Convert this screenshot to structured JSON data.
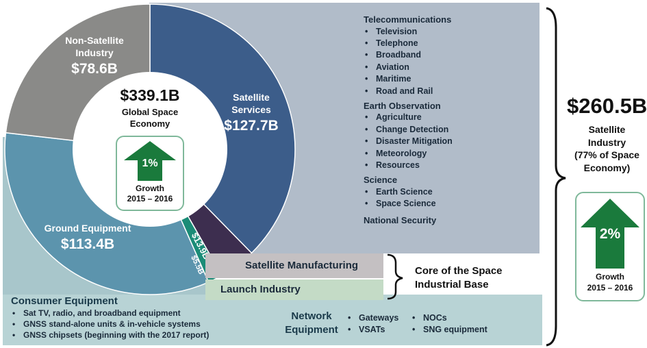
{
  "chart_data": {
    "type": "pie",
    "center_title": "$339.1B",
    "center_subtitle": "Global Space Economy",
    "center_growth": {
      "value": "1%",
      "label": "Growth",
      "period": "2015 – 2016"
    },
    "segments": [
      {
        "label": "Satellite Services",
        "value_text": "$127.7B",
        "value": 127.7,
        "color": "#3c5d8a"
      },
      {
        "label": "",
        "value_text": "$13.9B",
        "value": 13.9,
        "color": "#3d2e4f"
      },
      {
        "label": "",
        "value_text": "$5.5B",
        "value": 5.5,
        "color": "#1b8c77"
      },
      {
        "label": "Ground Equipment",
        "value_text": "$113.4B",
        "value": 113.4,
        "color": "#5c94ad"
      },
      {
        "label": "Non-Satellite Industry",
        "value_text": "$78.6B",
        "value": 78.6,
        "color": "#8a8a88"
      }
    ]
  },
  "satellite_industry": {
    "value": "$260.5B",
    "label_lines": [
      "Satellite",
      "Industry",
      "(77% of Space",
      "Economy)"
    ],
    "growth": {
      "value": "2%",
      "label": "Growth",
      "period": "2015 – 2016"
    }
  },
  "categories": [
    {
      "title": "Telecommunications",
      "items": [
        "Television",
        "Telephone",
        "Broadband",
        "Aviation",
        "Maritime",
        "Road and Rail"
      ]
    },
    {
      "title": "Earth Observation",
      "items": [
        "Agriculture",
        "Change Detection",
        "Disaster Mitigation",
        "Meteorology",
        "Resources"
      ]
    },
    {
      "title": "Science",
      "items": [
        "Earth Science",
        "Space Science"
      ]
    },
    {
      "title": "National Security",
      "items": []
    }
  ],
  "core": {
    "manufacturing": "Satellite Manufacturing",
    "launch": "Launch Industry",
    "label_lines": [
      "Core of the Space",
      "Industrial Base"
    ]
  },
  "consumer": {
    "title": "Consumer Equipment",
    "items": [
      "Sat TV, radio, and broadband equipment",
      "GNSS stand-alone units & in-vehicle systems",
      "GNSS chipsets (beginning with the 2017 report)"
    ]
  },
  "network": {
    "title_lines": [
      "Network",
      "Equipment"
    ],
    "col1": [
      "Gateways",
      "VSATs"
    ],
    "col2": [
      "NOCs",
      "SNG equipment"
    ]
  },
  "colors": {
    "satellite_panel": "#b1bcc9",
    "ground_panel": "#a8c6cb",
    "consumer_band": "#b8d3d5",
    "growth_arrow": "#1a7a3c"
  }
}
